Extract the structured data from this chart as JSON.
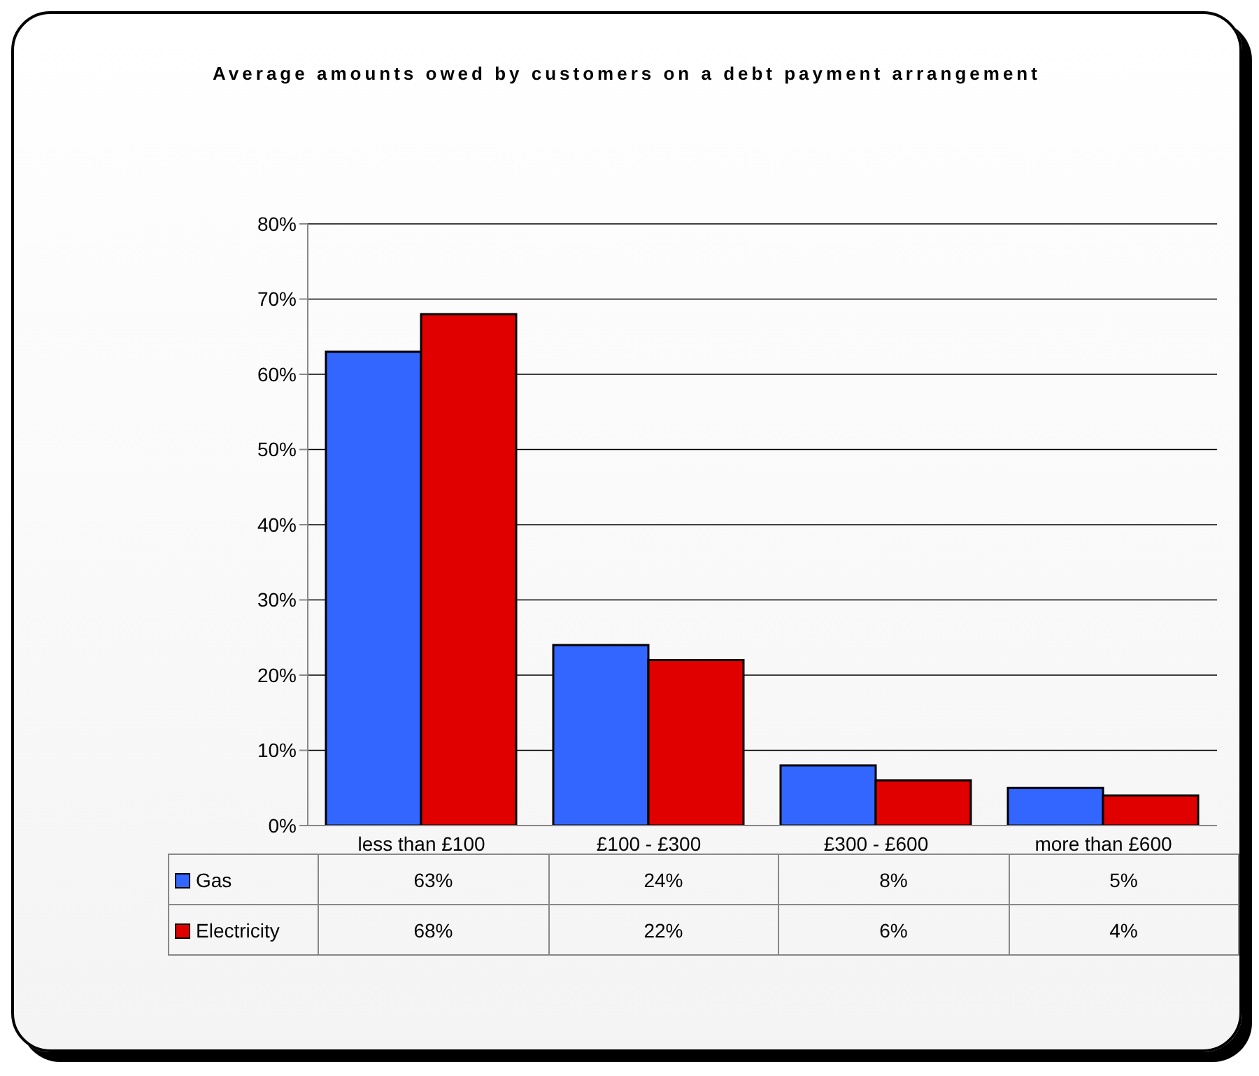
{
  "chart_data": {
    "type": "bar",
    "title": "Average amounts owed by customers on a debt payment arrangement",
    "categories": [
      "less than £100",
      "£100 - £300",
      "£300 - £600",
      "more than £600"
    ],
    "series": [
      {
        "name": "Gas",
        "color": "#3366ff",
        "values": [
          63,
          24,
          8,
          5
        ],
        "value_labels": [
          "63%",
          "24%",
          "8%",
          "5%"
        ]
      },
      {
        "name": "Electricity",
        "color": "#e00000",
        "values": [
          68,
          22,
          6,
          4
        ],
        "value_labels": [
          "68%",
          "22%",
          "6%",
          "4%"
        ]
      }
    ],
    "ylim": [
      0,
      80
    ],
    "yticks": [
      {
        "value": 0,
        "label": "0%"
      },
      {
        "value": 10,
        "label": "10%"
      },
      {
        "value": 20,
        "label": "20%"
      },
      {
        "value": 30,
        "label": "30%"
      },
      {
        "value": 40,
        "label": "40%"
      },
      {
        "value": 50,
        "label": "50%"
      },
      {
        "value": 60,
        "label": "60%"
      },
      {
        "value": 70,
        "label": "70%"
      },
      {
        "value": 80,
        "label": "80%"
      }
    ],
    "grid": "y",
    "legend": "bottom"
  }
}
